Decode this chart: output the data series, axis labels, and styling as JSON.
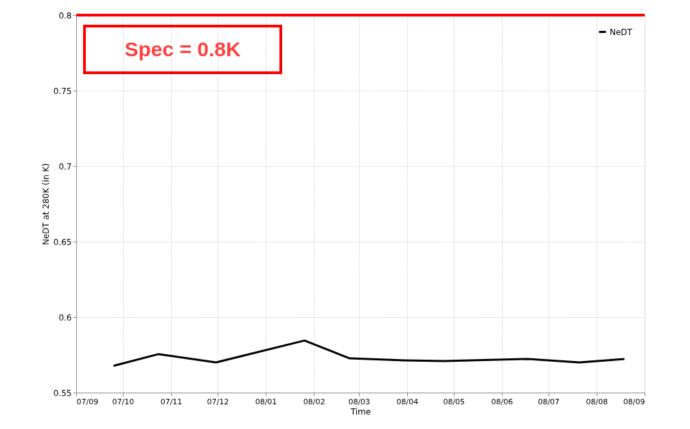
{
  "chart_data": {
    "type": "line",
    "xlabel": "Time",
    "ylabel": "NeDT at 280K (in K)",
    "x": [
      "2007-09-25",
      "2007-10-24",
      "2007-11-30",
      "2008-01-26",
      "2008-02-24",
      "2008-03-30",
      "2008-04-25",
      "2008-06-18",
      "2008-07-21",
      "2008-08-19"
    ],
    "series": [
      {
        "name": "NeDT",
        "color": "#000000",
        "values": [
          0.5677,
          0.5755,
          0.57,
          0.5845,
          0.5727,
          0.5714,
          0.5709,
          0.5723,
          0.57,
          0.5723
        ]
      }
    ],
    "xlim": [
      "2007-09",
      "2008-09"
    ],
    "xticks": [
      {
        "value": "2007-09",
        "label": "07/09"
      },
      {
        "value": "2007-10",
        "label": "07/10"
      },
      {
        "value": "2007-11",
        "label": "07/11"
      },
      {
        "value": "2007-12",
        "label": "07/12"
      },
      {
        "value": "2008-01",
        "label": "08/01"
      },
      {
        "value": "2008-02",
        "label": "08/02"
      },
      {
        "value": "2008-03",
        "label": "08/03"
      },
      {
        "value": "2008-04",
        "label": "08/04"
      },
      {
        "value": "2008-05",
        "label": "08/05"
      },
      {
        "value": "2008-06",
        "label": "08/06"
      },
      {
        "value": "2008-07",
        "label": "08/07"
      },
      {
        "value": "2008-08",
        "label": "08/08"
      },
      {
        "value": "2008-09",
        "label": "08/09"
      }
    ],
    "ylim": [
      0.55,
      0.8
    ],
    "yticks": [
      0.55,
      0.6,
      0.65,
      0.7,
      0.75,
      0.8
    ],
    "ref_lines": [
      {
        "axis": "y",
        "value": 0.8,
        "label": "Spec = 0.8K",
        "color": "#ff0000"
      }
    ],
    "grid": true,
    "legend": "top right",
    "marker": "none",
    "line_style": "solid"
  }
}
